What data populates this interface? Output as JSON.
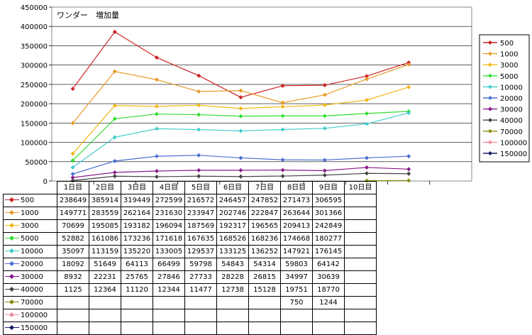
{
  "chart_data": {
    "type": "line",
    "title": "ワンダー　増加量",
    "categories": [
      "1日目",
      "2日目",
      "3日目",
      "4日目",
      "5日目",
      "6日目",
      "7日目",
      "8日目",
      "9日目",
      "10日目"
    ],
    "ylim": [
      0,
      450000
    ],
    "yticks": [
      0,
      50000,
      100000,
      150000,
      200000,
      250000,
      300000,
      350000,
      400000,
      450000
    ],
    "yticklabels": [
      "0",
      "50000",
      "100000",
      "150000",
      "200000",
      "250000",
      "300000",
      "350000",
      "400000",
      "450000"
    ],
    "grid": "horizontal",
    "legend": "right",
    "series": [
      {
        "name": "500",
        "color": "#cc2222",
        "values": [
          238649,
          385914,
          319449,
          272599,
          216572,
          246457,
          247852,
          271473,
          306595,
          null
        ],
        "labels": [
          "238649",
          "385914",
          "319449",
          "272599",
          "216572",
          "246457",
          "247852",
          "271473",
          "306595",
          ""
        ]
      },
      {
        "name": "1000",
        "color": "#e89a2a",
        "values": [
          149771,
          283559,
          262164,
          231630,
          233947,
          202746,
          222847,
          263644,
          301366,
          null
        ],
        "labels": [
          "149771",
          "283559",
          "262164",
          "231630",
          "233947",
          "202746",
          "222847",
          "263644",
          "301366",
          ""
        ]
      },
      {
        "name": "3000",
        "color": "#f0b814",
        "values": [
          70699,
          195085,
          193182,
          196094,
          187569,
          192317,
          196565,
          209413,
          242849,
          null
        ],
        "labels": [
          "70699",
          "195085",
          "193182",
          "196094",
          "187569",
          "192317",
          "196565",
          "209413",
          "242849",
          ""
        ]
      },
      {
        "name": "5000",
        "color": "#33dd33",
        "values": [
          52882,
          161086,
          173236,
          171618,
          167635,
          168526,
          168236,
          174668,
          180277,
          null
        ],
        "labels": [
          "52882",
          "161086",
          "173236",
          "171618",
          "167635",
          "168526",
          "168236",
          "174668",
          "180277",
          ""
        ]
      },
      {
        "name": "10000",
        "color": "#44cccc",
        "values": [
          35097,
          113159,
          135220,
          133005,
          129537,
          133125,
          136252,
          147921,
          176145,
          null
        ],
        "labels": [
          "35097",
          "113159",
          "135220",
          "133005",
          "129537",
          "133125",
          "136252",
          "147921",
          "176145",
          ""
        ]
      },
      {
        "name": "20000",
        "color": "#4a6fd0",
        "values": [
          18092,
          51649,
          64113,
          66499,
          59798,
          54843,
          54314,
          59803,
          64142,
          null
        ],
        "labels": [
          "18092",
          "51649",
          "64113",
          "66499",
          "59798",
          "54843",
          "54314",
          "59803",
          "64142",
          ""
        ]
      },
      {
        "name": "30000",
        "color": "#8a1a8a",
        "values": [
          8932,
          22231,
          25765,
          27846,
          27733,
          28228,
          26815,
          34997,
          30639,
          null
        ],
        "labels": [
          "8932",
          "22231",
          "25765",
          "27846",
          "27733",
          "28228",
          "26815",
          "34997",
          "30639",
          ""
        ]
      },
      {
        "name": "40000",
        "color": "#444444",
        "values": [
          1125,
          12364,
          11120,
          12344,
          11477,
          12738,
          15128,
          19751,
          18770,
          null
        ],
        "labels": [
          "1125",
          "12364",
          "11120",
          "12344",
          "11477",
          "12738",
          "15128",
          "19751",
          "18770",
          ""
        ]
      },
      {
        "name": "70000",
        "color": "#8a8a10",
        "values": [
          null,
          null,
          null,
          null,
          null,
          null,
          null,
          750,
          1244,
          null
        ],
        "labels": [
          "",
          "",
          "",
          "",
          "",
          "",
          "",
          "750",
          "1244",
          ""
        ]
      },
      {
        "name": "100000",
        "color": "#f08aa0",
        "values": [
          null,
          null,
          null,
          null,
          null,
          null,
          null,
          null,
          null,
          null
        ],
        "labels": [
          "",
          "",
          "",
          "",
          "",
          "",
          "",
          "",
          "",
          ""
        ]
      },
      {
        "name": "150000",
        "color": "#1a1a66",
        "values": [
          null,
          null,
          null,
          null,
          null,
          null,
          null,
          null,
          null,
          null
        ],
        "labels": [
          "",
          "",
          "",
          "",
          "",
          "",
          "",
          "",
          "",
          ""
        ]
      }
    ]
  }
}
